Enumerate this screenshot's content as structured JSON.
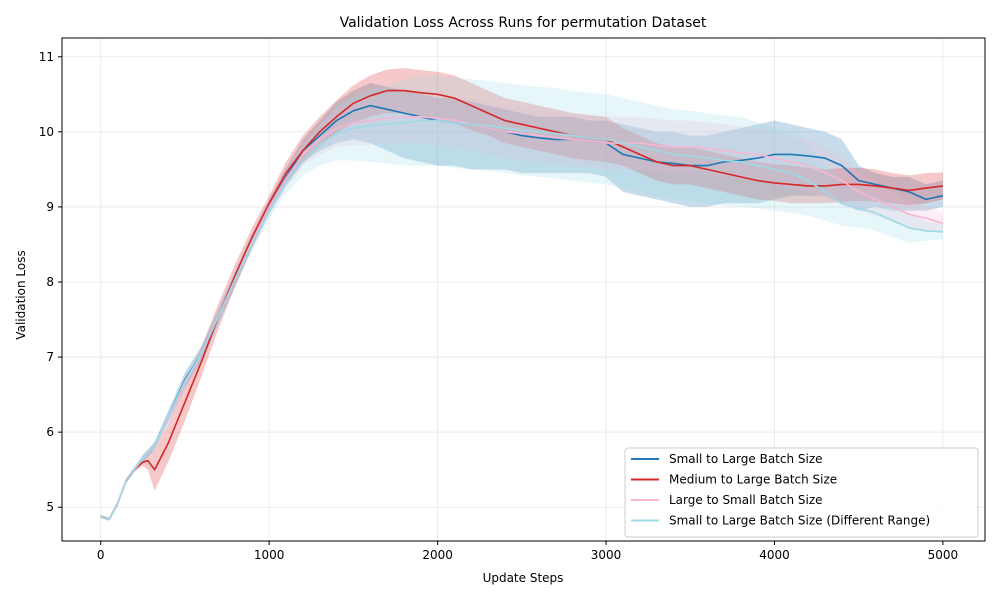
{
  "chart_data": {
    "type": "line",
    "title": "Validation Loss Across Runs for permutation Dataset",
    "xlabel": "Update Steps",
    "ylabel": "Validation Loss",
    "xlim": [
      -230,
      5250
    ],
    "ylim": [
      4.55,
      11.25
    ],
    "x_ticks": [
      0,
      1000,
      2000,
      3000,
      4000,
      5000
    ],
    "x_tick_labels": [
      "0",
      "1000",
      "2000",
      "3000",
      "4000",
      "5000"
    ],
    "y_ticks": [
      5,
      6,
      7,
      8,
      9,
      10,
      11
    ],
    "y_tick_labels": [
      "5",
      "6",
      "7",
      "8",
      "9",
      "10",
      "11"
    ],
    "grid": true,
    "legend_position": "bottom-right",
    "x": [
      0,
      50,
      100,
      150,
      200,
      250,
      280,
      320,
      400,
      500,
      600,
      700,
      800,
      900,
      1000,
      1100,
      1200,
      1300,
      1400,
      1500,
      1600,
      1700,
      1800,
      1900,
      2000,
      2100,
      2200,
      2300,
      2400,
      2500,
      2600,
      2700,
      2800,
      2900,
      3000,
      3100,
      3200,
      3300,
      3400,
      3500,
      3600,
      3700,
      3800,
      3900,
      4000,
      4100,
      4200,
      4300,
      4400,
      4500,
      4600,
      4700,
      4800,
      4900,
      5000
    ],
    "series": [
      {
        "name": "Small to Large Batch Size",
        "color": "#1f77b4",
        "values": [
          4.88,
          4.84,
          5.05,
          5.35,
          5.5,
          5.65,
          5.72,
          5.82,
          6.2,
          6.7,
          7.05,
          7.55,
          8.05,
          8.55,
          9.0,
          9.4,
          9.75,
          9.95,
          10.15,
          10.28,
          10.35,
          10.3,
          10.25,
          10.2,
          10.15,
          10.12,
          10.1,
          10.05,
          10.0,
          9.95,
          9.92,
          9.9,
          9.9,
          9.88,
          9.85,
          9.7,
          9.65,
          9.6,
          9.58,
          9.55,
          9.55,
          9.6,
          9.62,
          9.65,
          9.7,
          9.7,
          9.68,
          9.65,
          9.55,
          9.35,
          9.3,
          9.25,
          9.2,
          9.1,
          9.15
        ],
        "lower": [
          4.86,
          4.82,
          5.02,
          5.32,
          5.47,
          5.6,
          5.67,
          5.77,
          6.12,
          6.6,
          6.95,
          7.45,
          7.95,
          8.45,
          8.9,
          9.28,
          9.6,
          9.75,
          9.85,
          9.9,
          9.85,
          9.75,
          9.65,
          9.6,
          9.55,
          9.55,
          9.5,
          9.5,
          9.5,
          9.45,
          9.45,
          9.45,
          9.45,
          9.45,
          9.4,
          9.2,
          9.15,
          9.1,
          9.05,
          9.0,
          9.0,
          9.05,
          9.05,
          9.05,
          9.1,
          9.15,
          9.15,
          9.15,
          9.05,
          8.95,
          9.0,
          8.95,
          8.95,
          8.95,
          9.0
        ],
        "upper": [
          4.9,
          4.86,
          5.08,
          5.38,
          5.53,
          5.7,
          5.77,
          5.87,
          6.28,
          6.8,
          7.15,
          7.65,
          8.15,
          8.65,
          9.1,
          9.52,
          9.9,
          10.15,
          10.4,
          10.55,
          10.65,
          10.6,
          10.55,
          10.5,
          10.45,
          10.45,
          10.4,
          10.35,
          10.3,
          10.25,
          10.2,
          10.2,
          10.2,
          10.15,
          10.15,
          10.1,
          10.05,
          10.0,
          10.0,
          9.95,
          9.95,
          10.0,
          10.05,
          10.1,
          10.15,
          10.1,
          10.05,
          10.0,
          9.9,
          9.55,
          9.45,
          9.4,
          9.4,
          9.3,
          9.35
        ]
      },
      {
        "name": "Medium to Large Batch Size",
        "color": "#d62728",
        "values": [
          4.88,
          4.84,
          5.05,
          5.35,
          5.5,
          5.6,
          5.62,
          5.5,
          5.85,
          6.4,
          6.95,
          7.55,
          8.1,
          8.6,
          9.05,
          9.45,
          9.75,
          10.0,
          10.2,
          10.38,
          10.48,
          10.55,
          10.55,
          10.52,
          10.5,
          10.45,
          10.35,
          10.25,
          10.15,
          10.1,
          10.05,
          10.0,
          9.95,
          9.92,
          9.9,
          9.8,
          9.7,
          9.6,
          9.55,
          9.55,
          9.5,
          9.45,
          9.4,
          9.35,
          9.32,
          9.3,
          9.28,
          9.28,
          9.3,
          9.3,
          9.28,
          9.25,
          9.22,
          9.25,
          9.28
        ],
        "lower": [
          4.86,
          4.82,
          5.02,
          5.32,
          5.47,
          5.55,
          5.5,
          5.22,
          5.6,
          6.15,
          6.75,
          7.38,
          7.95,
          8.47,
          8.95,
          9.3,
          9.58,
          9.8,
          9.98,
          10.12,
          10.2,
          10.25,
          10.25,
          10.2,
          10.18,
          10.12,
          10.02,
          9.95,
          9.85,
          9.8,
          9.75,
          9.7,
          9.65,
          9.62,
          9.6,
          9.55,
          9.45,
          9.35,
          9.3,
          9.3,
          9.25,
          9.2,
          9.15,
          9.1,
          9.08,
          9.05,
          9.05,
          9.05,
          9.07,
          9.08,
          9.07,
          9.05,
          9.02,
          9.05,
          9.1
        ],
        "upper": [
          4.9,
          4.86,
          5.08,
          5.38,
          5.53,
          5.65,
          5.72,
          5.78,
          6.1,
          6.65,
          7.15,
          7.72,
          8.25,
          8.73,
          9.15,
          9.6,
          9.95,
          10.2,
          10.42,
          10.62,
          10.75,
          10.83,
          10.85,
          10.82,
          10.8,
          10.75,
          10.65,
          10.55,
          10.45,
          10.4,
          10.35,
          10.3,
          10.25,
          10.22,
          10.2,
          10.05,
          9.95,
          9.85,
          9.8,
          9.8,
          9.75,
          9.7,
          9.65,
          9.6,
          9.57,
          9.55,
          9.52,
          9.5,
          9.52,
          9.52,
          9.5,
          9.45,
          9.42,
          9.45,
          9.46
        ]
      },
      {
        "name": "Large to Small Batch Size",
        "color": "#f7b6d2",
        "values": [
          4.88,
          4.84,
          5.05,
          5.35,
          5.5,
          5.65,
          5.72,
          5.82,
          6.18,
          6.65,
          7.05,
          7.55,
          8.05,
          8.55,
          9.0,
          9.38,
          9.7,
          9.9,
          10.05,
          10.12,
          10.15,
          10.18,
          10.2,
          10.2,
          10.18,
          10.15,
          10.1,
          10.05,
          10.0,
          9.98,
          9.95,
          9.92,
          9.9,
          9.88,
          9.85,
          9.85,
          9.85,
          9.82,
          9.8,
          9.8,
          9.78,
          9.75,
          9.72,
          9.7,
          9.65,
          9.6,
          9.55,
          9.45,
          9.35,
          9.2,
          9.1,
          9.0,
          8.9,
          8.85,
          8.78
        ],
        "lower": [
          4.86,
          4.82,
          5.02,
          5.32,
          5.47,
          5.6,
          5.67,
          5.77,
          6.1,
          6.55,
          6.95,
          7.45,
          7.95,
          8.45,
          8.9,
          9.25,
          9.55,
          9.7,
          9.8,
          9.82,
          9.83,
          9.85,
          9.85,
          9.85,
          9.82,
          9.8,
          9.75,
          9.7,
          9.65,
          9.62,
          9.6,
          9.57,
          9.55,
          9.52,
          9.5,
          9.5,
          9.5,
          9.47,
          9.45,
          9.45,
          9.43,
          9.4,
          9.37,
          9.35,
          9.3,
          9.25,
          9.2,
          9.12,
          9.02,
          8.95,
          8.88,
          8.8,
          8.72,
          8.68,
          8.65
        ],
        "upper": [
          4.9,
          4.86,
          5.08,
          5.38,
          5.53,
          5.7,
          5.77,
          5.87,
          6.26,
          6.75,
          7.15,
          7.65,
          8.15,
          8.65,
          9.1,
          9.5,
          9.85,
          10.1,
          10.3,
          10.42,
          10.47,
          10.5,
          10.55,
          10.55,
          10.53,
          10.5,
          10.45,
          10.4,
          10.35,
          10.33,
          10.3,
          10.27,
          10.25,
          10.23,
          10.2,
          10.2,
          10.2,
          10.17,
          10.15,
          10.15,
          10.13,
          10.1,
          10.07,
          10.05,
          10.0,
          9.95,
          9.9,
          9.78,
          9.68,
          9.45,
          9.32,
          9.2,
          9.08,
          9.02,
          8.92
        ]
      },
      {
        "name": "Small to Large Batch Size (Different Range)",
        "color": "#9edae5",
        "values": [
          4.88,
          4.84,
          5.05,
          5.35,
          5.5,
          5.65,
          5.72,
          5.82,
          6.2,
          6.68,
          7.05,
          7.55,
          8.05,
          8.52,
          8.95,
          9.32,
          9.62,
          9.82,
          9.98,
          10.05,
          10.08,
          10.1,
          10.12,
          10.15,
          10.15,
          10.12,
          10.1,
          10.08,
          10.05,
          10.02,
          10.0,
          9.98,
          9.95,
          9.92,
          9.9,
          9.85,
          9.8,
          9.75,
          9.7,
          9.68,
          9.65,
          9.62,
          9.6,
          9.55,
          9.5,
          9.45,
          9.35,
          9.2,
          9.05,
          8.98,
          8.92,
          8.82,
          8.72,
          8.68,
          8.67
        ],
        "lower": [
          4.86,
          4.82,
          5.02,
          5.32,
          5.47,
          5.6,
          5.67,
          5.77,
          6.12,
          6.58,
          6.95,
          7.45,
          7.95,
          8.42,
          8.85,
          9.18,
          9.42,
          9.55,
          9.62,
          9.62,
          9.6,
          9.58,
          9.55,
          9.55,
          9.55,
          9.52,
          9.5,
          9.48,
          9.45,
          9.42,
          9.4,
          9.38,
          9.35,
          9.32,
          9.3,
          9.25,
          9.2,
          9.15,
          9.1,
          9.08,
          9.05,
          9.02,
          9.0,
          8.98,
          8.95,
          8.92,
          8.88,
          8.82,
          8.75,
          8.72,
          8.68,
          8.6,
          8.52,
          8.55,
          8.57
        ],
        "upper": [
          4.9,
          4.86,
          5.08,
          5.38,
          5.53,
          5.7,
          5.77,
          5.87,
          6.28,
          6.78,
          7.15,
          7.65,
          8.15,
          8.62,
          9.05,
          9.46,
          9.82,
          10.09,
          10.34,
          10.48,
          10.56,
          10.62,
          10.69,
          10.75,
          10.75,
          10.72,
          10.7,
          10.68,
          10.65,
          10.62,
          10.6,
          10.58,
          10.55,
          10.52,
          10.5,
          10.45,
          10.4,
          10.35,
          10.3,
          10.28,
          10.25,
          10.22,
          10.2,
          10.12,
          10.05,
          9.98,
          9.82,
          9.58,
          9.35,
          9.24,
          9.16,
          9.04,
          8.92,
          8.81,
          8.77
        ]
      }
    ]
  }
}
